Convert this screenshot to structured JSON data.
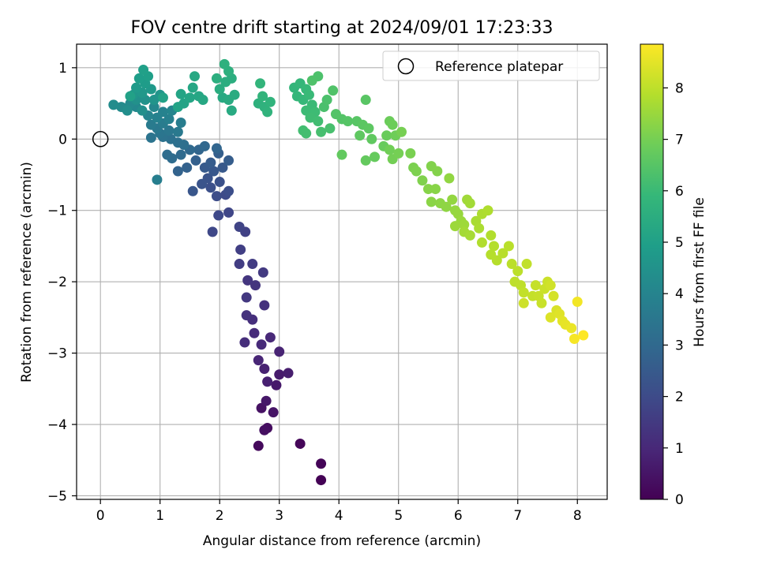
{
  "chart_data": {
    "type": "scatter",
    "title": "FOV centre drift starting at 2024/09/01 17:23:33",
    "xlabel": "Angular distance from reference (arcmin)",
    "ylabel": "Rotation from reference (arcmin)",
    "xlim": [
      -0.4,
      8.5
    ],
    "ylim": [
      -5.05,
      1.33
    ],
    "xticks": [
      0,
      1,
      2,
      3,
      4,
      5,
      6,
      7,
      8
    ],
    "yticks": [
      1,
      0,
      -1,
      -2,
      -3,
      -4,
      -5
    ],
    "grid": true,
    "legend": {
      "placement": "top-right",
      "label": "Reference platepar"
    },
    "reference_point": {
      "x": 0,
      "y": 0
    },
    "colorbar": {
      "label": "Hours from first FF file",
      "colormap": "viridis",
      "range": [
        0,
        8.85
      ],
      "ticks": [
        0,
        1,
        2,
        3,
        4,
        5,
        6,
        7,
        8
      ]
    },
    "points": [
      {
        "x": 3.7,
        "y": -4.78,
        "h": 0.03
      },
      {
        "x": 3.7,
        "y": -4.55,
        "h": 0.08
      },
      {
        "x": 3.35,
        "y": -4.27,
        "h": 0.15
      },
      {
        "x": 2.65,
        "y": -4.3,
        "h": 0.22
      },
      {
        "x": 2.8,
        "y": -4.05,
        "h": 0.3
      },
      {
        "x": 2.75,
        "y": -4.08,
        "h": 0.35
      },
      {
        "x": 2.7,
        "y": -3.77,
        "h": 0.42
      },
      {
        "x": 2.9,
        "y": -3.83,
        "h": 0.48
      },
      {
        "x": 2.78,
        "y": -3.67,
        "h": 0.55
      },
      {
        "x": 2.95,
        "y": -3.45,
        "h": 0.6
      },
      {
        "x": 3.0,
        "y": -3.3,
        "h": 0.66
      },
      {
        "x": 3.15,
        "y": -3.28,
        "h": 0.72
      },
      {
        "x": 2.8,
        "y": -3.4,
        "h": 0.78
      },
      {
        "x": 2.75,
        "y": -3.22,
        "h": 0.82
      },
      {
        "x": 3.0,
        "y": -2.98,
        "h": 0.88
      },
      {
        "x": 2.65,
        "y": -3.1,
        "h": 0.94
      },
      {
        "x": 2.85,
        "y": -2.78,
        "h": 1.0
      },
      {
        "x": 2.7,
        "y": -2.88,
        "h": 1.05
      },
      {
        "x": 2.58,
        "y": -2.72,
        "h": 1.1
      },
      {
        "x": 2.42,
        "y": -2.85,
        "h": 1.15
      },
      {
        "x": 2.55,
        "y": -2.53,
        "h": 1.2
      },
      {
        "x": 2.75,
        "y": -2.33,
        "h": 1.25
      },
      {
        "x": 2.45,
        "y": -2.47,
        "h": 1.3
      },
      {
        "x": 2.6,
        "y": -2.05,
        "h": 1.35
      },
      {
        "x": 2.47,
        "y": -1.98,
        "h": 1.4
      },
      {
        "x": 2.45,
        "y": -2.22,
        "h": 1.45
      },
      {
        "x": 2.73,
        "y": -1.87,
        "h": 1.5
      },
      {
        "x": 2.55,
        "y": -1.75,
        "h": 1.55
      },
      {
        "x": 2.33,
        "y": -1.75,
        "h": 1.6
      },
      {
        "x": 2.35,
        "y": -1.55,
        "h": 1.66
      },
      {
        "x": 2.43,
        "y": -1.3,
        "h": 1.72
      },
      {
        "x": 2.33,
        "y": -1.23,
        "h": 1.78
      },
      {
        "x": 2.15,
        "y": -1.03,
        "h": 1.84
      },
      {
        "x": 1.88,
        "y": -1.3,
        "h": 1.9
      },
      {
        "x": 1.98,
        "y": -1.07,
        "h": 1.95
      },
      {
        "x": 2.1,
        "y": -0.78,
        "h": 2.0
      },
      {
        "x": 1.95,
        "y": -0.8,
        "h": 2.05
      },
      {
        "x": 2.15,
        "y": -0.73,
        "h": 2.1
      },
      {
        "x": 1.85,
        "y": -0.68,
        "h": 2.15
      },
      {
        "x": 2.0,
        "y": -0.6,
        "h": 2.2
      },
      {
        "x": 1.8,
        "y": -0.55,
        "h": 2.25
      },
      {
        "x": 1.7,
        "y": -0.63,
        "h": 2.3
      },
      {
        "x": 1.55,
        "y": -0.73,
        "h": 2.35
      },
      {
        "x": 1.9,
        "y": -0.45,
        "h": 2.4
      },
      {
        "x": 2.05,
        "y": -0.4,
        "h": 2.45
      },
      {
        "x": 1.75,
        "y": -0.4,
        "h": 2.5
      },
      {
        "x": 1.85,
        "y": -0.33,
        "h": 2.55
      },
      {
        "x": 2.15,
        "y": -0.3,
        "h": 2.6
      },
      {
        "x": 1.98,
        "y": -0.2,
        "h": 2.65
      },
      {
        "x": 1.6,
        "y": -0.3,
        "h": 2.7
      },
      {
        "x": 1.45,
        "y": -0.4,
        "h": 2.75
      },
      {
        "x": 1.3,
        "y": -0.45,
        "h": 2.8
      },
      {
        "x": 1.65,
        "y": -0.15,
        "h": 2.85
      },
      {
        "x": 1.95,
        "y": -0.13,
        "h": 2.9
      },
      {
        "x": 1.75,
        "y": -0.1,
        "h": 2.95
      },
      {
        "x": 1.5,
        "y": -0.15,
        "h": 3.0
      },
      {
        "x": 1.35,
        "y": -0.22,
        "h": 3.05
      },
      {
        "x": 1.2,
        "y": -0.27,
        "h": 3.1
      },
      {
        "x": 1.12,
        "y": -0.22,
        "h": 3.15
      },
      {
        "x": 1.4,
        "y": -0.08,
        "h": 3.2
      },
      {
        "x": 1.3,
        "y": -0.05,
        "h": 3.25
      },
      {
        "x": 1.18,
        "y": 0.0,
        "h": 3.3
      },
      {
        "x": 1.05,
        "y": 0.03,
        "h": 3.35
      },
      {
        "x": 0.85,
        "y": 0.02,
        "h": 3.4
      },
      {
        "x": 1.0,
        "y": 0.08,
        "h": 3.45
      },
      {
        "x": 1.15,
        "y": 0.12,
        "h": 3.5
      },
      {
        "x": 0.95,
        "y": 0.15,
        "h": 3.55
      },
      {
        "x": 1.3,
        "y": 0.1,
        "h": 3.6
      },
      {
        "x": 0.85,
        "y": 0.2,
        "h": 3.65
      },
      {
        "x": 1.05,
        "y": 0.22,
        "h": 3.7
      },
      {
        "x": 1.35,
        "y": 0.23,
        "h": 3.75
      },
      {
        "x": 0.95,
        "y": -0.57,
        "h": 3.8
      },
      {
        "x": 1.15,
        "y": 0.28,
        "h": 3.85
      },
      {
        "x": 0.95,
        "y": 0.3,
        "h": 3.9
      },
      {
        "x": 1.05,
        "y": 0.38,
        "h": 3.95
      },
      {
        "x": 0.8,
        "y": 0.33,
        "h": 4.0
      },
      {
        "x": 1.2,
        "y": 0.4,
        "h": 4.05
      },
      {
        "x": 0.9,
        "y": 0.45,
        "h": 4.1
      },
      {
        "x": 0.6,
        "y": 0.45,
        "h": 4.15
      },
      {
        "x": 0.5,
        "y": 0.5,
        "h": 4.2
      },
      {
        "x": 0.35,
        "y": 0.45,
        "h": 4.25
      },
      {
        "x": 0.22,
        "y": 0.48,
        "h": 4.3
      },
      {
        "x": 0.45,
        "y": 0.4,
        "h": 4.35
      },
      {
        "x": 0.7,
        "y": 0.4,
        "h": 4.4
      },
      {
        "x": 0.6,
        "y": 0.55,
        "h": 4.45
      },
      {
        "x": 0.75,
        "y": 0.55,
        "h": 4.5
      },
      {
        "x": 0.9,
        "y": 0.55,
        "h": 4.55
      },
      {
        "x": 1.0,
        "y": 0.62,
        "h": 4.6
      },
      {
        "x": 0.55,
        "y": 0.62,
        "h": 4.65
      },
      {
        "x": 0.7,
        "y": 0.65,
        "h": 4.7
      },
      {
        "x": 0.85,
        "y": 0.7,
        "h": 4.75
      },
      {
        "x": 0.6,
        "y": 0.72,
        "h": 4.8
      },
      {
        "x": 0.75,
        "y": 0.78,
        "h": 4.85
      },
      {
        "x": 0.65,
        "y": 0.85,
        "h": 4.9
      },
      {
        "x": 0.8,
        "y": 0.88,
        "h": 4.95
      },
      {
        "x": 0.72,
        "y": 0.97,
        "h": 5.0
      },
      {
        "x": 0.5,
        "y": 0.6,
        "h": 5.03
      },
      {
        "x": 1.05,
        "y": 0.58,
        "h": 5.06
      },
      {
        "x": 1.3,
        "y": 0.45,
        "h": 5.1
      },
      {
        "x": 1.4,
        "y": 0.5,
        "h": 5.13
      },
      {
        "x": 1.35,
        "y": 0.63,
        "h": 5.16
      },
      {
        "x": 1.5,
        "y": 0.58,
        "h": 5.19
      },
      {
        "x": 1.55,
        "y": 0.72,
        "h": 5.22
      },
      {
        "x": 1.65,
        "y": 0.6,
        "h": 5.25
      },
      {
        "x": 1.72,
        "y": 0.55,
        "h": 5.28
      },
      {
        "x": 1.58,
        "y": 0.88,
        "h": 5.31
      },
      {
        "x": 2.05,
        "y": 0.58,
        "h": 5.34
      },
      {
        "x": 2.2,
        "y": 0.4,
        "h": 5.37
      },
      {
        "x": 2.15,
        "y": 0.55,
        "h": 5.4
      },
      {
        "x": 2.25,
        "y": 0.62,
        "h": 5.43
      },
      {
        "x": 2.0,
        "y": 0.7,
        "h": 5.46
      },
      {
        "x": 2.1,
        "y": 0.8,
        "h": 5.49
      },
      {
        "x": 2.2,
        "y": 0.85,
        "h": 5.52
      },
      {
        "x": 1.95,
        "y": 0.85,
        "h": 5.55
      },
      {
        "x": 2.15,
        "y": 0.95,
        "h": 5.58
      },
      {
        "x": 2.08,
        "y": 1.05,
        "h": 5.61
      },
      {
        "x": 2.65,
        "y": 0.5,
        "h": 5.64
      },
      {
        "x": 2.75,
        "y": 0.45,
        "h": 5.67
      },
      {
        "x": 2.8,
        "y": 0.38,
        "h": 5.7
      },
      {
        "x": 2.85,
        "y": 0.52,
        "h": 5.73
      },
      {
        "x": 2.72,
        "y": 0.6,
        "h": 5.76
      },
      {
        "x": 2.68,
        "y": 0.78,
        "h": 5.79
      },
      {
        "x": 3.25,
        "y": 0.72,
        "h": 5.82
      },
      {
        "x": 3.3,
        "y": 0.6,
        "h": 5.85
      },
      {
        "x": 3.35,
        "y": 0.78,
        "h": 5.88
      },
      {
        "x": 3.4,
        "y": 0.55,
        "h": 5.91
      },
      {
        "x": 3.45,
        "y": 0.7,
        "h": 5.94
      },
      {
        "x": 3.5,
        "y": 0.62,
        "h": 5.97
      },
      {
        "x": 3.55,
        "y": 0.48,
        "h": 6.0
      },
      {
        "x": 3.45,
        "y": 0.4,
        "h": 6.03
      },
      {
        "x": 3.6,
        "y": 0.38,
        "h": 6.06
      },
      {
        "x": 3.52,
        "y": 0.3,
        "h": 6.09
      },
      {
        "x": 3.65,
        "y": 0.25,
        "h": 6.12
      },
      {
        "x": 3.4,
        "y": 0.12,
        "h": 6.15
      },
      {
        "x": 3.45,
        "y": 0.08,
        "h": 6.18
      },
      {
        "x": 3.7,
        "y": 0.1,
        "h": 6.21
      },
      {
        "x": 3.85,
        "y": 0.15,
        "h": 6.24
      },
      {
        "x": 3.75,
        "y": 0.45,
        "h": 6.27
      },
      {
        "x": 3.8,
        "y": 0.55,
        "h": 6.3
      },
      {
        "x": 3.65,
        "y": 0.88,
        "h": 6.33
      },
      {
        "x": 3.55,
        "y": 0.82,
        "h": 6.36
      },
      {
        "x": 3.9,
        "y": 0.68,
        "h": 6.39
      },
      {
        "x": 3.95,
        "y": 0.35,
        "h": 6.42
      },
      {
        "x": 4.05,
        "y": 0.28,
        "h": 6.45
      },
      {
        "x": 4.15,
        "y": 0.25,
        "h": 6.48
      },
      {
        "x": 4.3,
        "y": 0.25,
        "h": 6.51
      },
      {
        "x": 4.45,
        "y": 0.55,
        "h": 6.54
      },
      {
        "x": 4.4,
        "y": 0.2,
        "h": 6.57
      },
      {
        "x": 4.5,
        "y": 0.15,
        "h": 6.6
      },
      {
        "x": 4.35,
        "y": 0.05,
        "h": 6.63
      },
      {
        "x": 4.55,
        "y": 0.0,
        "h": 6.66
      },
      {
        "x": 4.05,
        "y": -0.22,
        "h": 6.69
      },
      {
        "x": 4.45,
        "y": -0.3,
        "h": 6.72
      },
      {
        "x": 4.6,
        "y": -0.25,
        "h": 6.75
      },
      {
        "x": 4.75,
        "y": -0.1,
        "h": 6.78
      },
      {
        "x": 4.8,
        "y": 0.05,
        "h": 6.81
      },
      {
        "x": 4.85,
        "y": 0.25,
        "h": 6.84
      },
      {
        "x": 4.9,
        "y": 0.2,
        "h": 6.87
      },
      {
        "x": 4.95,
        "y": 0.05,
        "h": 6.9
      },
      {
        "x": 4.85,
        "y": -0.15,
        "h": 6.93
      },
      {
        "x": 4.9,
        "y": -0.28,
        "h": 6.96
      },
      {
        "x": 5.0,
        "y": -0.2,
        "h": 6.99
      },
      {
        "x": 5.05,
        "y": 0.1,
        "h": 7.02
      },
      {
        "x": 5.2,
        "y": -0.2,
        "h": 7.05
      },
      {
        "x": 5.25,
        "y": -0.4,
        "h": 7.08
      },
      {
        "x": 5.3,
        "y": -0.45,
        "h": 7.11
      },
      {
        "x": 5.4,
        "y": -0.58,
        "h": 7.14
      },
      {
        "x": 5.55,
        "y": -0.38,
        "h": 7.17
      },
      {
        "x": 5.65,
        "y": -0.45,
        "h": 7.2
      },
      {
        "x": 5.5,
        "y": -0.7,
        "h": 7.23
      },
      {
        "x": 5.62,
        "y": -0.7,
        "h": 7.26
      },
      {
        "x": 5.55,
        "y": -0.88,
        "h": 7.29
      },
      {
        "x": 5.7,
        "y": -0.9,
        "h": 7.32
      },
      {
        "x": 5.8,
        "y": -0.95,
        "h": 7.35
      },
      {
        "x": 5.85,
        "y": -0.55,
        "h": 7.38
      },
      {
        "x": 5.9,
        "y": -0.85,
        "h": 7.41
      },
      {
        "x": 5.95,
        "y": -1.0,
        "h": 7.44
      },
      {
        "x": 6.0,
        "y": -1.05,
        "h": 7.47
      },
      {
        "x": 6.05,
        "y": -1.15,
        "h": 7.5
      },
      {
        "x": 5.95,
        "y": -1.22,
        "h": 7.53
      },
      {
        "x": 6.1,
        "y": -1.2,
        "h": 7.56
      },
      {
        "x": 6.15,
        "y": -0.85,
        "h": 7.59
      },
      {
        "x": 6.2,
        "y": -0.9,
        "h": 7.62
      },
      {
        "x": 6.1,
        "y": -1.3,
        "h": 7.65
      },
      {
        "x": 6.2,
        "y": -1.35,
        "h": 7.68
      },
      {
        "x": 6.3,
        "y": -1.15,
        "h": 7.71
      },
      {
        "x": 6.35,
        "y": -1.25,
        "h": 7.74
      },
      {
        "x": 6.4,
        "y": -1.05,
        "h": 7.77
      },
      {
        "x": 6.5,
        "y": -1.0,
        "h": 7.8
      },
      {
        "x": 6.4,
        "y": -1.45,
        "h": 7.82
      },
      {
        "x": 6.55,
        "y": -1.35,
        "h": 7.84
      },
      {
        "x": 6.6,
        "y": -1.5,
        "h": 7.86
      },
      {
        "x": 6.55,
        "y": -1.62,
        "h": 7.88
      },
      {
        "x": 6.65,
        "y": -1.7,
        "h": 7.9
      },
      {
        "x": 6.75,
        "y": -1.6,
        "h": 7.92
      },
      {
        "x": 6.85,
        "y": -1.5,
        "h": 7.94
      },
      {
        "x": 6.9,
        "y": -1.75,
        "h": 7.96
      },
      {
        "x": 7.0,
        "y": -1.85,
        "h": 7.98
      },
      {
        "x": 6.95,
        "y": -2.0,
        "h": 8.0
      },
      {
        "x": 7.05,
        "y": -2.05,
        "h": 8.02
      },
      {
        "x": 7.15,
        "y": -1.75,
        "h": 8.04
      },
      {
        "x": 7.1,
        "y": -2.15,
        "h": 8.06
      },
      {
        "x": 7.25,
        "y": -2.2,
        "h": 8.08
      },
      {
        "x": 7.3,
        "y": -2.05,
        "h": 8.1
      },
      {
        "x": 7.35,
        "y": -2.2,
        "h": 8.12
      },
      {
        "x": 7.4,
        "y": -2.3,
        "h": 8.14
      },
      {
        "x": 7.45,
        "y": -2.1,
        "h": 8.16
      },
      {
        "x": 7.5,
        "y": -2.0,
        "h": 8.18
      },
      {
        "x": 7.1,
        "y": -2.3,
        "h": 8.2
      },
      {
        "x": 7.55,
        "y": -2.05,
        "h": 8.25
      },
      {
        "x": 7.6,
        "y": -2.2,
        "h": 8.3
      },
      {
        "x": 7.65,
        "y": -2.4,
        "h": 8.35
      },
      {
        "x": 7.55,
        "y": -2.5,
        "h": 8.4
      },
      {
        "x": 7.7,
        "y": -2.45,
        "h": 8.45
      },
      {
        "x": 7.75,
        "y": -2.55,
        "h": 8.5
      },
      {
        "x": 7.8,
        "y": -2.6,
        "h": 8.55
      },
      {
        "x": 7.9,
        "y": -2.65,
        "h": 8.6
      },
      {
        "x": 8.0,
        "y": -2.28,
        "h": 8.7
      },
      {
        "x": 7.95,
        "y": -2.8,
        "h": 8.75
      },
      {
        "x": 8.1,
        "y": -2.75,
        "h": 8.85
      }
    ]
  }
}
